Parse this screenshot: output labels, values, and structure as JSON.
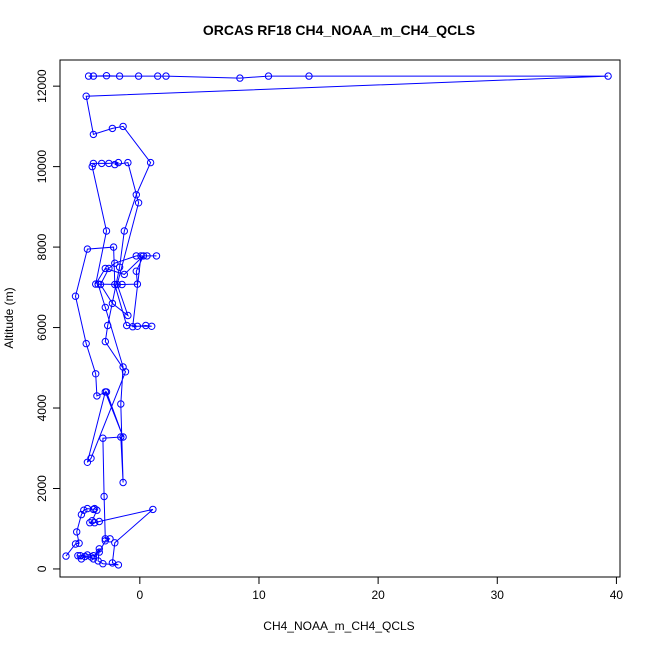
{
  "chart_data": {
    "type": "line",
    "title": "ORCAS RF18 CH4_NOAA_m_CH4_QCLS",
    "xlabel": "CH4_NOAA_m_CH4_QCLS",
    "ylabel": "Altitude (m)",
    "xlim": [
      -6.7,
      40.3
    ],
    "ylim": [
      -200,
      12650
    ],
    "x_ticks": [
      0,
      10,
      20,
      30,
      40
    ],
    "y_ticks": [
      0,
      2000,
      4000,
      6000,
      8000,
      10000,
      12000
    ],
    "markers": "open-circle",
    "grid": false,
    "legend": "none",
    "series": [
      {
        "color": "#0000ff",
        "points": [
          [
            -6.2,
            320
          ],
          [
            -5.4,
            620
          ],
          [
            -5.1,
            640
          ],
          [
            -5.3,
            920
          ],
          [
            -4.9,
            1350
          ],
          [
            -4.7,
            1460
          ],
          [
            -4.4,
            1500
          ],
          [
            -3.9,
            1480
          ],
          [
            -3.8,
            1500
          ],
          [
            -3.6,
            1460
          ],
          [
            -4.0,
            1200
          ],
          [
            -4.2,
            1150
          ],
          [
            -3.8,
            1150
          ],
          [
            -3.4,
            1180
          ],
          [
            1.1,
            1480
          ],
          [
            -2.1,
            650
          ],
          [
            -2.3,
            150
          ],
          [
            -1.8,
            100
          ],
          [
            -3.1,
            130
          ],
          [
            -3.5,
            200
          ],
          [
            -3.4,
            500
          ],
          [
            -3.9,
            250
          ],
          [
            -4.1,
            300
          ],
          [
            -4.6,
            310
          ],
          [
            -4.9,
            250
          ],
          [
            -5.2,
            330
          ],
          [
            -5.0,
            330
          ],
          [
            -4.4,
            350
          ],
          [
            -3.9,
            330
          ],
          [
            -3.4,
            420
          ],
          [
            -2.9,
            700
          ],
          [
            -2.5,
            750
          ],
          [
            -2.9,
            750
          ],
          [
            -3.0,
            1800
          ],
          [
            -3.1,
            3250
          ],
          [
            -1.6,
            3280
          ],
          [
            -1.4,
            2150
          ],
          [
            -1.6,
            4100
          ],
          [
            -1.4,
            5020
          ],
          [
            -2.9,
            6500
          ],
          [
            -3.5,
            7080
          ],
          [
            -1.5,
            7070
          ],
          [
            -0.2,
            7080
          ],
          [
            -0.3,
            7400
          ],
          [
            0.3,
            7780
          ],
          [
            -1.3,
            7320
          ],
          [
            -2.9,
            7470
          ],
          [
            -3.7,
            7080
          ],
          [
            -2.8,
            8400
          ],
          [
            -4.0,
            10000
          ],
          [
            -3.9,
            10080
          ],
          [
            -3.2,
            10080
          ],
          [
            -2.6,
            10080
          ],
          [
            -1.8,
            10100
          ],
          [
            -2.1,
            10050
          ],
          [
            -1.0,
            10100
          ],
          [
            -0.1,
            9100
          ],
          [
            -1.9,
            7070
          ],
          [
            -1.0,
            6300
          ],
          [
            -2.3,
            6600
          ],
          [
            -3.3,
            7070
          ],
          [
            -2.6,
            7470
          ],
          [
            -2.1,
            7600
          ],
          [
            -0.3,
            7780
          ],
          [
            0.6,
            7780
          ],
          [
            1.4,
            7780
          ],
          [
            0.1,
            7780
          ],
          [
            -0.6,
            6020
          ],
          [
            0.5,
            6050
          ],
          [
            1.0,
            6030
          ],
          [
            -0.2,
            6030
          ],
          [
            -1.1,
            6050
          ],
          [
            -2.1,
            7070
          ],
          [
            -2.2,
            8000
          ],
          [
            -4.4,
            7950
          ],
          [
            -5.4,
            6780
          ],
          [
            -4.5,
            5600
          ],
          [
            -3.7,
            4850
          ],
          [
            -3.6,
            4300
          ],
          [
            -2.8,
            4400
          ],
          [
            -1.4,
            3280
          ],
          [
            -2.9,
            4400
          ],
          [
            -4.4,
            2650
          ],
          [
            -4.1,
            2750
          ],
          [
            -1.2,
            4900
          ],
          [
            -2.9,
            5650
          ],
          [
            -2.7,
            6050
          ],
          [
            -1.7,
            7500
          ],
          [
            -1.3,
            8400
          ],
          [
            -0.3,
            9300
          ],
          [
            0.9,
            10100
          ],
          [
            -1.4,
            11000
          ],
          [
            -2.3,
            10950
          ],
          [
            -3.9,
            10800
          ],
          [
            -4.5,
            11750
          ],
          [
            39.3,
            12250
          ],
          [
            14.2,
            12250
          ],
          [
            10.8,
            12250
          ],
          [
            8.4,
            12200
          ],
          [
            2.2,
            12250
          ],
          [
            -0.1,
            12250
          ],
          [
            1.5,
            12250
          ],
          [
            -4.3,
            12250
          ],
          [
            -3.9,
            12250
          ],
          [
            -2.8,
            12260
          ],
          [
            -1.7,
            12250
          ]
        ]
      }
    ]
  }
}
